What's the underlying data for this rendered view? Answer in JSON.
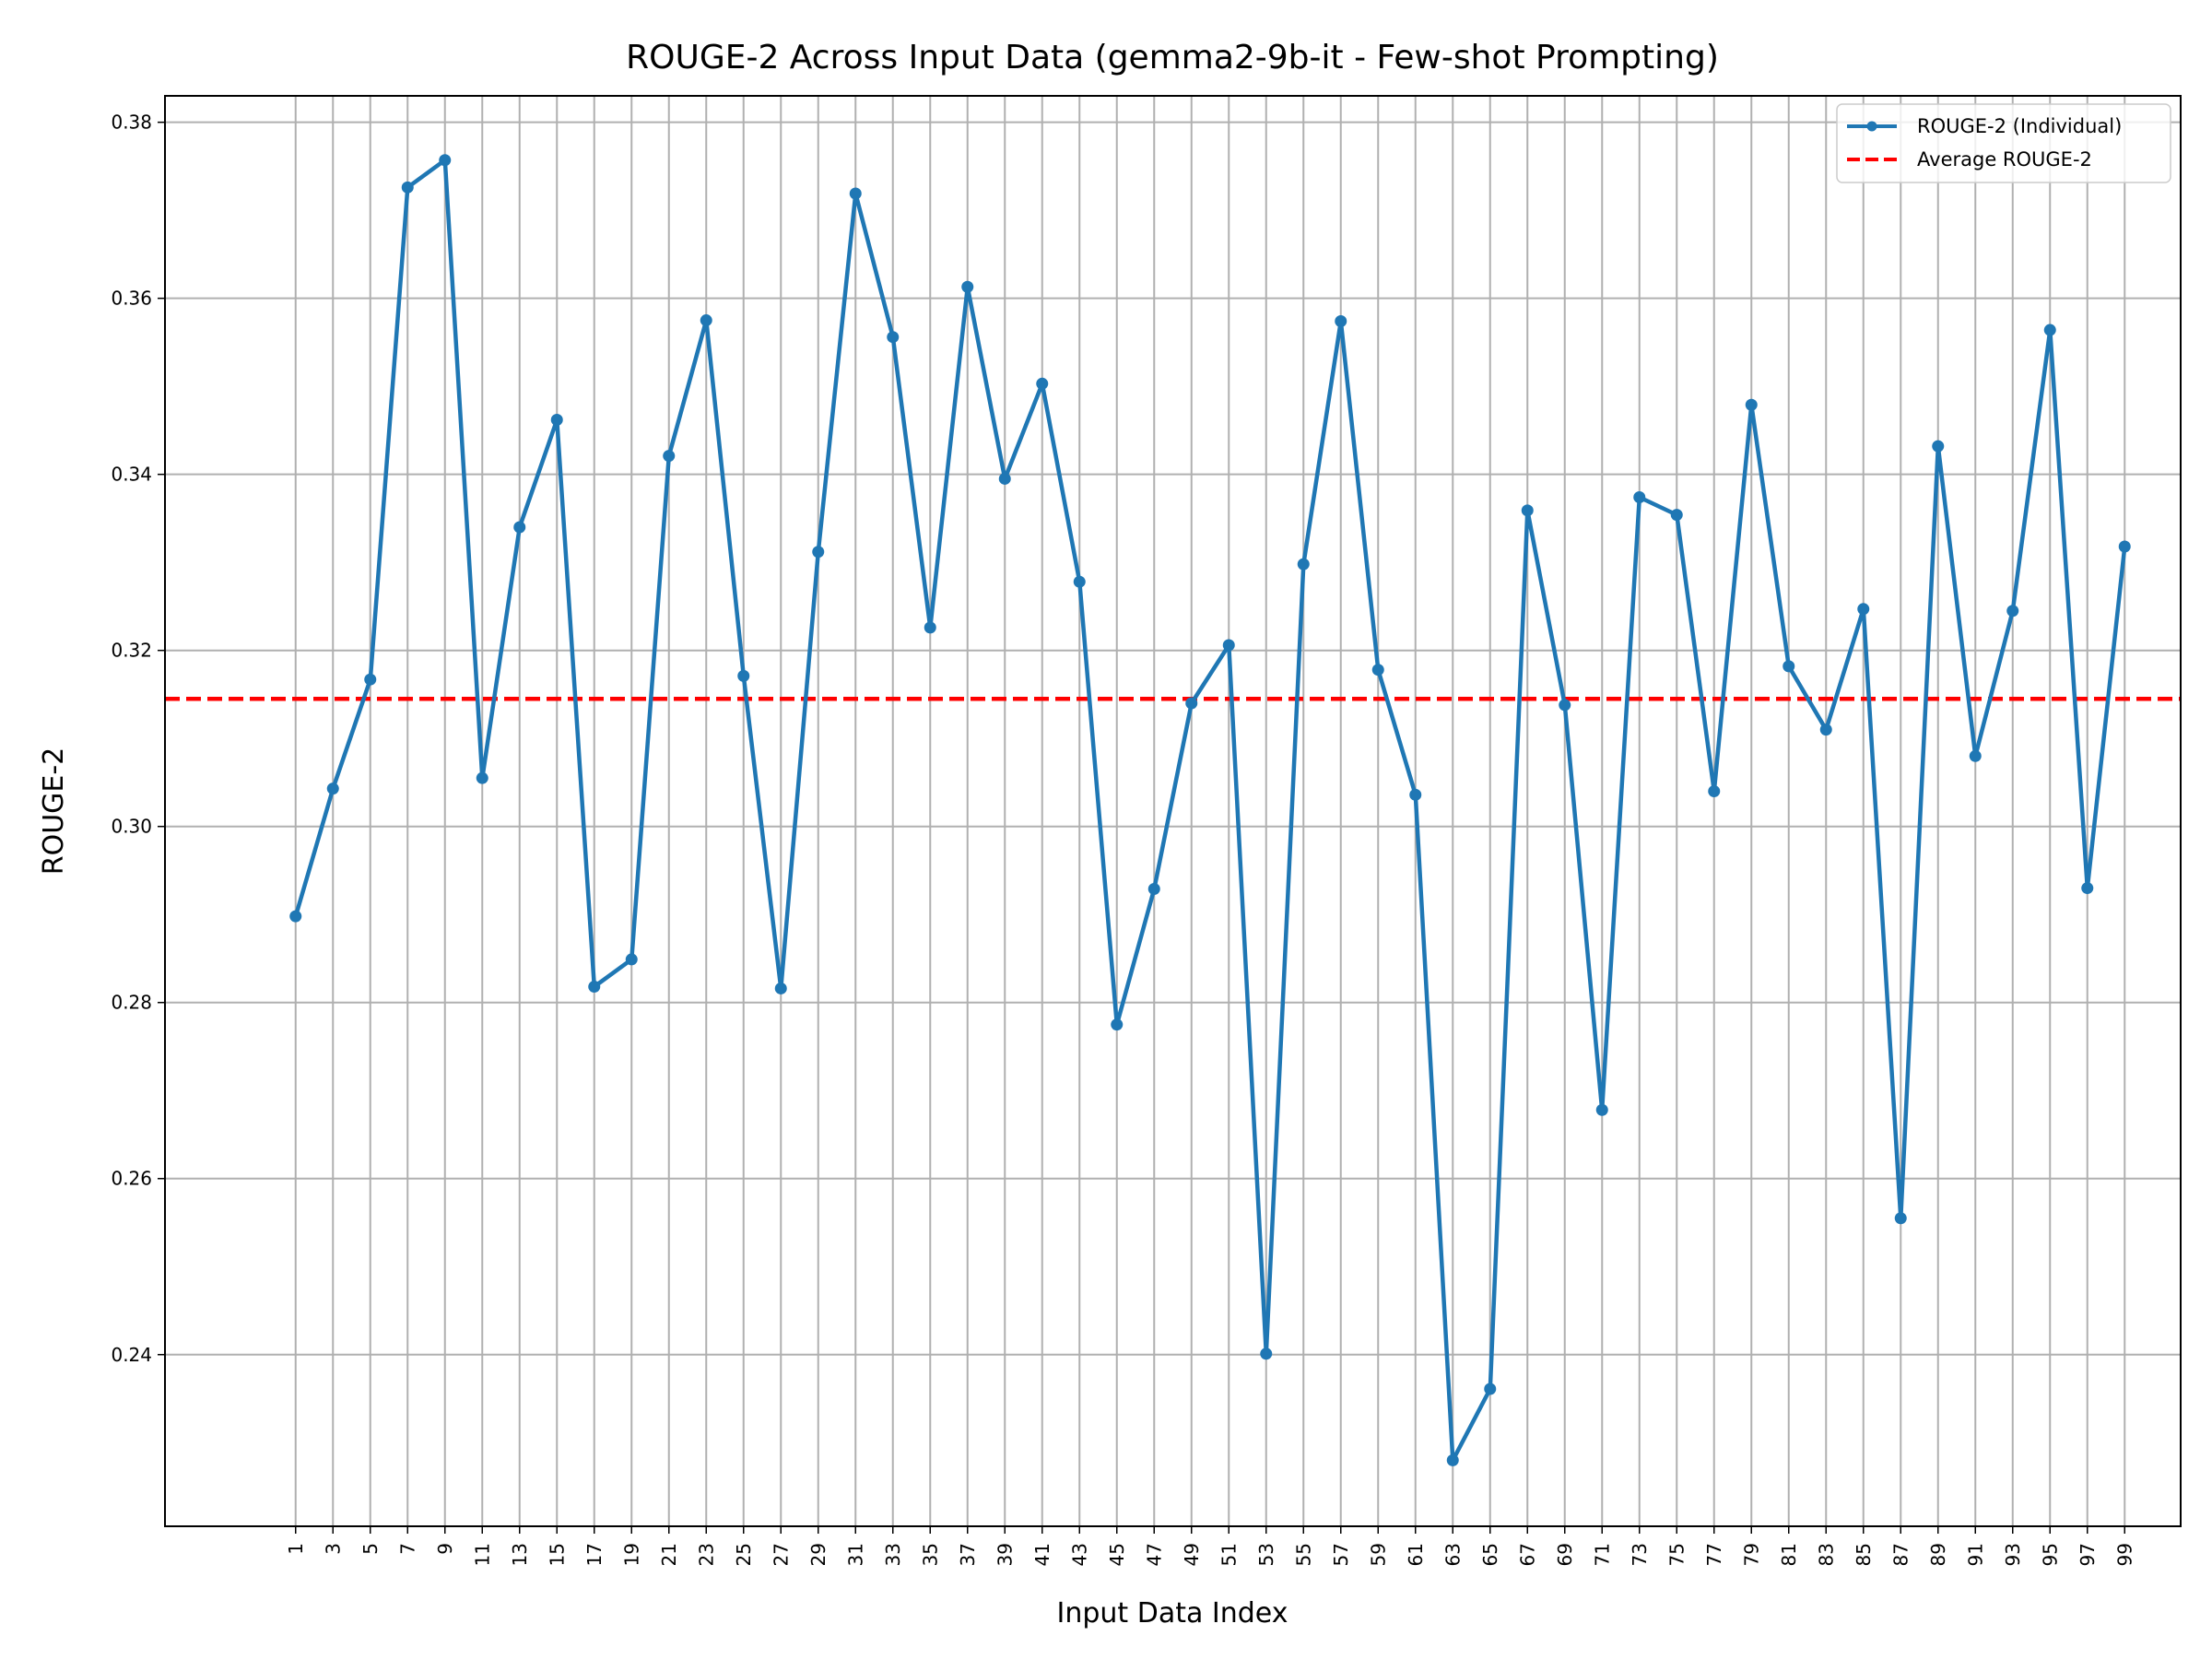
{
  "chart_data": {
    "type": "line",
    "title": "ROUGE-2 Across Input Data (gemma2-9b-it - Few-shot Prompting)",
    "xlabel": "Input Data Index",
    "ylabel": "ROUGE-2",
    "x": [
      1,
      3,
      5,
      7,
      9,
      11,
      13,
      15,
      17,
      19,
      21,
      23,
      25,
      27,
      29,
      31,
      33,
      35,
      37,
      39,
      41,
      43,
      45,
      47,
      49,
      51,
      53,
      55,
      57,
      59,
      61,
      63,
      65,
      67,
      69,
      71,
      73,
      75,
      77,
      79,
      81,
      83,
      85,
      87,
      89,
      91,
      93,
      95,
      97,
      99
    ],
    "xticks": [
      "1",
      "3",
      "5",
      "7",
      "9",
      "11",
      "13",
      "15",
      "17",
      "19",
      "21",
      "23",
      "25",
      "27",
      "29",
      "31",
      "33",
      "35",
      "37",
      "39",
      "41",
      "43",
      "45",
      "47",
      "49",
      "51",
      "53",
      "55",
      "57",
      "59",
      "61",
      "63",
      "65",
      "67",
      "69",
      "71",
      "73",
      "75",
      "77",
      "79",
      "81",
      "83",
      "85",
      "87",
      "89",
      "91",
      "93",
      "95",
      "97",
      "99"
    ],
    "yticks": [
      "0.24",
      "0.26",
      "0.28",
      "0.30",
      "0.32",
      "0.34",
      "0.36",
      "0.38"
    ],
    "ylim": [
      0.2205,
      0.383
    ],
    "xlim": [
      -6,
      102
    ],
    "grid": true,
    "legend_position": "upper right",
    "series": [
      {
        "name": "ROUGE-2 (Individual)",
        "color": "#1f77b4",
        "style": "solid-with-markers",
        "values": [
          0.2898,
          0.3043,
          0.3167,
          0.3726,
          0.3757,
          0.3055,
          0.334,
          0.3462,
          0.2818,
          0.2849,
          0.3421,
          0.3575,
          0.3171,
          0.2816,
          0.3312,
          0.3719,
          0.3556,
          0.3226,
          0.3613,
          0.3395,
          0.3503,
          0.3278,
          0.2775,
          0.2929,
          0.314,
          0.3206,
          0.2401,
          0.3298,
          0.3574,
          0.3178,
          0.3036,
          0.228,
          0.2361,
          0.3359,
          0.3138,
          0.2678,
          0.3374,
          0.3354,
          0.304,
          0.3479,
          0.3182,
          0.311,
          0.3247,
          0.2555,
          0.3432,
          0.308,
          0.3245,
          0.3564,
          0.293,
          0.3318
        ]
      },
      {
        "name": "Average ROUGE-2",
        "color": "#ff0000",
        "style": "dashed",
        "value": 0.3145
      }
    ]
  }
}
